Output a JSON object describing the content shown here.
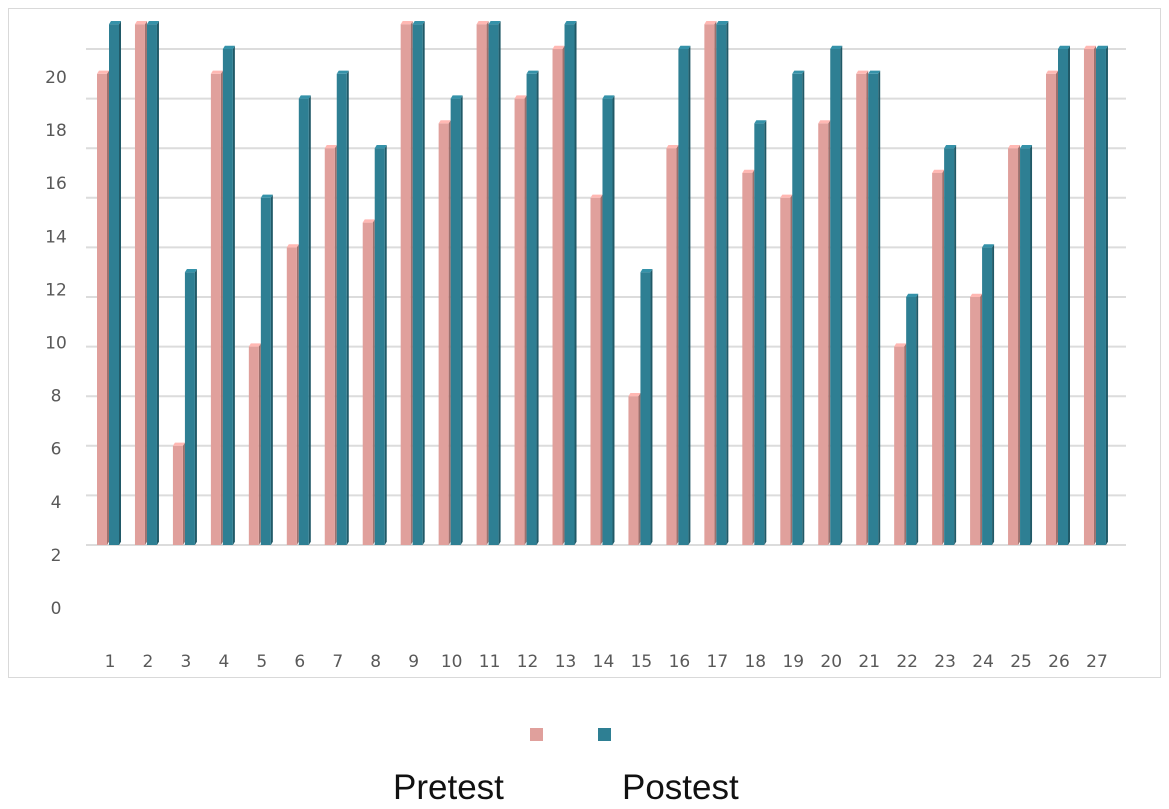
{
  "chart_data": {
    "type": "bar",
    "categories": [
      "1",
      "2",
      "3",
      "4",
      "5",
      "6",
      "7",
      "8",
      "9",
      "10",
      "11",
      "12",
      "13",
      "14",
      "15",
      "16",
      "17",
      "18",
      "19",
      "20",
      "21",
      "22",
      "23",
      "24",
      "25",
      "26",
      "27"
    ],
    "series": [
      {
        "name": "Pretest",
        "color": "#e0a09c",
        "values": [
          19,
          21,
          4,
          19,
          8,
          12,
          16,
          13,
          21,
          17,
          21,
          18,
          20,
          14,
          6,
          16,
          21,
          15,
          14,
          17,
          19,
          8,
          15,
          10,
          16,
          19,
          20
        ]
      },
      {
        "name": "Postest",
        "color": "#2e7f93",
        "values": [
          21,
          21,
          11,
          20,
          14,
          18,
          19,
          16,
          21,
          18,
          21,
          19,
          21,
          18,
          11,
          20,
          21,
          17,
          19,
          20,
          19,
          10,
          16,
          12,
          16,
          20,
          20
        ]
      }
    ],
    "y_ticks": [
      "0",
      "2",
      "4",
      "6",
      "8",
      "10",
      "12",
      "14",
      "16",
      "18",
      "20"
    ],
    "ylim": [
      0,
      21
    ],
    "grid": true,
    "legend_position": "bottom"
  }
}
